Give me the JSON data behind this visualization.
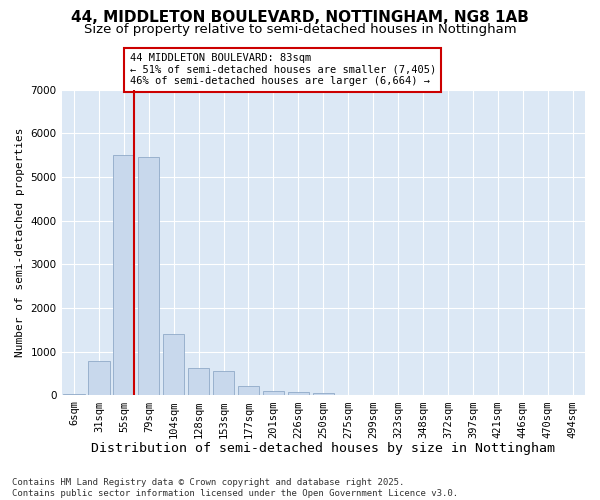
{
  "title_line1": "44, MIDDLETON BOULEVARD, NOTTINGHAM, NG8 1AB",
  "title_line2": "Size of property relative to semi-detached houses in Nottingham",
  "xlabel": "Distribution of semi-detached houses by size in Nottingham",
  "ylabel": "Number of semi-detached properties",
  "categories": [
    "6sqm",
    "31sqm",
    "55sqm",
    "79sqm",
    "104sqm",
    "128sqm",
    "153sqm",
    "177sqm",
    "201sqm",
    "226sqm",
    "250sqm",
    "275sqm",
    "299sqm",
    "323sqm",
    "348sqm",
    "372sqm",
    "397sqm",
    "421sqm",
    "446sqm",
    "470sqm",
    "494sqm"
  ],
  "values": [
    30,
    780,
    5500,
    5450,
    1400,
    620,
    560,
    220,
    110,
    70,
    55,
    5,
    0,
    0,
    0,
    0,
    0,
    0,
    0,
    0,
    0
  ],
  "bar_color": "#c8d8ec",
  "bar_edgecolor": "#90aac8",
  "vline_color": "#cc0000",
  "vline_x_index": 2,
  "annotation_text": "44 MIDDLETON BOULEVARD: 83sqm\n← 51% of semi-detached houses are smaller (7,405)\n46% of semi-detached houses are larger (6,664) →",
  "annotation_box_facecolor": "white",
  "annotation_box_edgecolor": "#cc0000",
  "ylim_max": 7000,
  "yticks": [
    0,
    1000,
    2000,
    3000,
    4000,
    5000,
    6000,
    7000
  ],
  "plot_bg_color": "#dce8f5",
  "footer_line1": "Contains HM Land Registry data © Crown copyright and database right 2025.",
  "footer_line2": "Contains public sector information licensed under the Open Government Licence v3.0.",
  "title_fontsize": 11,
  "subtitle_fontsize": 9.5,
  "xlabel_fontsize": 9.5,
  "ylabel_fontsize": 8,
  "tick_fontsize": 7.5,
  "footer_fontsize": 6.5,
  "ann_fontsize": 7.5
}
